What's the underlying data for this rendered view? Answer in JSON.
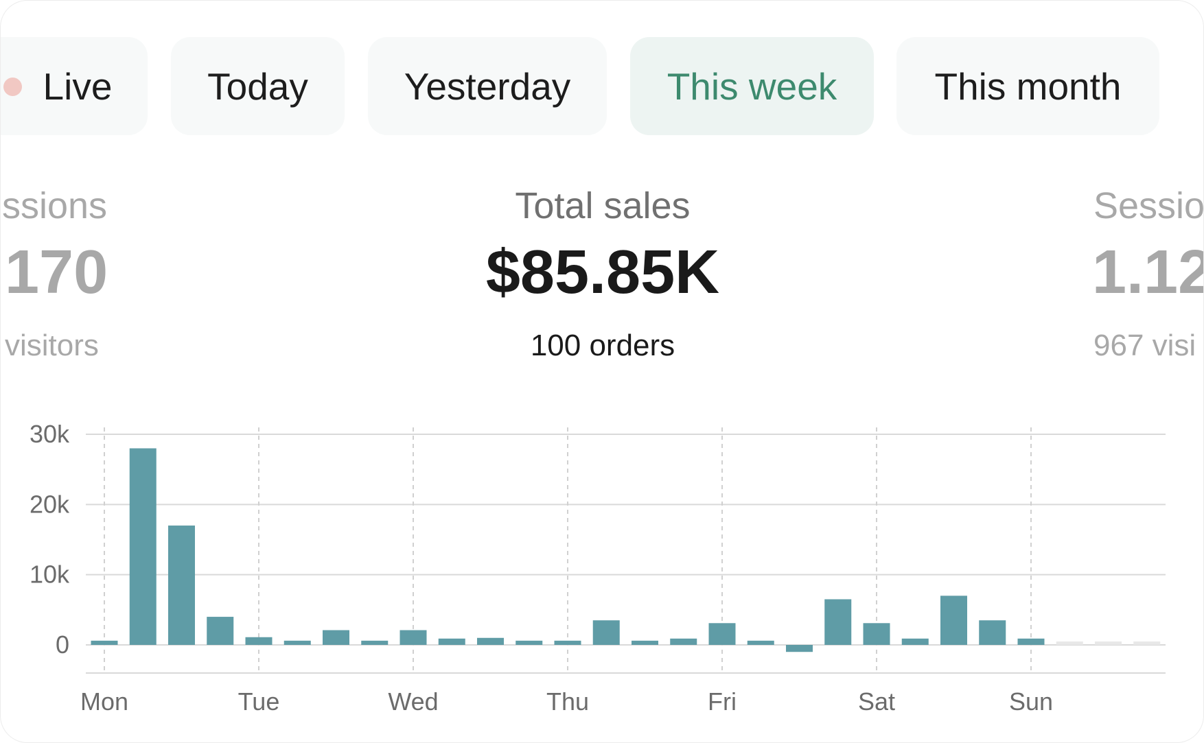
{
  "tabs": [
    {
      "label": "Live",
      "active": false
    },
    {
      "label": "Today",
      "active": false
    },
    {
      "label": "Yesterday",
      "active": false
    },
    {
      "label": "This week",
      "active": true
    },
    {
      "label": "This month",
      "active": false
    }
  ],
  "metrics": {
    "left": {
      "label": "ssions",
      "value": "170",
      "sub": "visitors"
    },
    "center": {
      "label": "Total sales",
      "value": "$85.85K",
      "sub": "100 orders"
    },
    "right": {
      "label": "Sessio",
      "value": "1.12",
      "sub": "967 visi"
    }
  },
  "colors": {
    "bar": "#5f9ca6",
    "bar_future": "#e8e8e8",
    "active_tab_text": "#3d8a6e",
    "live_dot": "#f1c8c3"
  },
  "chart_data": {
    "type": "bar",
    "days": [
      "Mon",
      "Tue",
      "Wed",
      "Thu",
      "Fri",
      "Sat",
      "Sun"
    ],
    "y_ticks": [
      "30k",
      "20k",
      "10k",
      "0"
    ],
    "y_tick_values": [
      30000,
      20000,
      10000,
      0
    ],
    "ylim": [
      -4000,
      30000
    ],
    "bars_per_day": 4,
    "values": [
      600,
      28000,
      17000,
      4000,
      1100,
      600,
      2100,
      600,
      2100,
      900,
      1000,
      600,
      600,
      3500,
      600,
      900,
      3100,
      600,
      -1000,
      6500,
      3100,
      900,
      7000,
      3500,
      900,
      null,
      null,
      null
    ],
    "future_placeholder_count": 3,
    "grid": true,
    "legend": "none"
  }
}
